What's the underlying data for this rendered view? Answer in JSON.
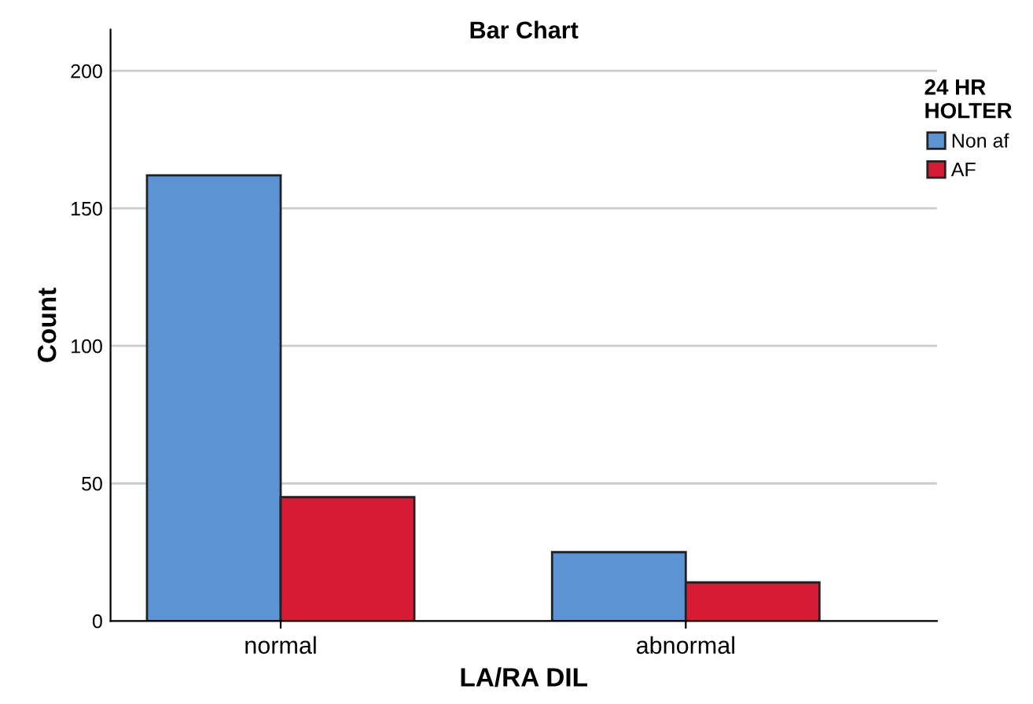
{
  "chart_data": {
    "type": "bar",
    "title": "Bar Chart",
    "xlabel": "LA/RA DIL",
    "ylabel": "Count",
    "categories": [
      "normal",
      "abnormal"
    ],
    "series": [
      {
        "name": "Non af",
        "color": "#5b93d3",
        "values": [
          162,
          25
        ]
      },
      {
        "name": "AF",
        "color": "#d81b35",
        "values": [
          45,
          14
        ]
      }
    ],
    "legend_title": "24 HR\nHOLTER",
    "legend": "top right",
    "ylim": [
      0,
      215
    ],
    "yticks": [
      0,
      50,
      100,
      150,
      200
    ],
    "grid": "y"
  }
}
